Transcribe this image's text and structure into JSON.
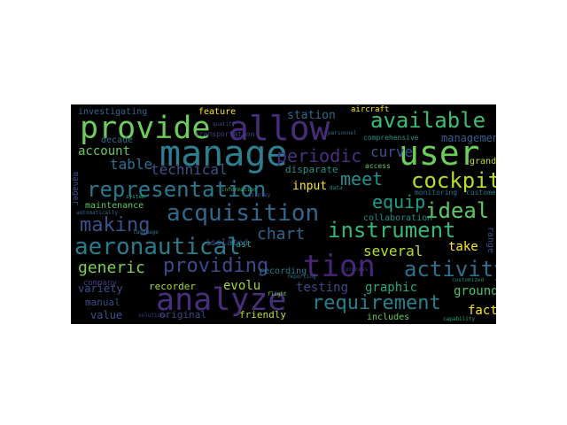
{
  "palette": {
    "background": "#000000",
    "page": "#ffffff"
  },
  "words": [
    {
      "t": "provide",
      "c": "#6ccd5a"
    },
    {
      "t": "allow",
      "c": "#472d7b"
    },
    {
      "t": "manage",
      "c": "#2b7f8e"
    },
    {
      "t": "user",
      "c": "#6ccd5a"
    },
    {
      "t": "available",
      "c": "#3fbc73"
    },
    {
      "t": "cockpit",
      "c": "#b4de2c"
    },
    {
      "t": "representation",
      "c": "#2a788e"
    },
    {
      "t": "acquisition",
      "c": "#31688e"
    },
    {
      "t": "tion",
      "c": "#482576"
    },
    {
      "t": "analyze",
      "c": "#472f7d"
    },
    {
      "t": "aeronautical",
      "c": "#287c8e"
    },
    {
      "t": "instrument",
      "c": "#35b779"
    },
    {
      "t": "providing",
      "c": "#3e4a89"
    },
    {
      "t": "making",
      "c": "#3b528b"
    },
    {
      "t": "ideal",
      "c": "#5ec962"
    },
    {
      "t": "requirement",
      "c": "#26818e"
    },
    {
      "t": "activity",
      "c": "#2d708e"
    },
    {
      "t": "periodic",
      "c": "#46327e"
    },
    {
      "t": "generic",
      "c": "#7ad151"
    },
    {
      "t": "meet",
      "c": "#21918c"
    },
    {
      "t": "equip",
      "c": "#1fa088"
    },
    {
      "t": "curve",
      "c": "#3a538b"
    },
    {
      "t": "chart",
      "c": "#33638d"
    },
    {
      "t": "testing",
      "c": "#3e4989"
    },
    {
      "t": "graphic",
      "c": "#22a884"
    },
    {
      "t": "several",
      "c": "#b8de29"
    },
    {
      "t": "table",
      "c": "#2c728e"
    },
    {
      "t": "technical",
      "c": "#3b528b"
    },
    {
      "t": "account",
      "c": "#65cb5e"
    },
    {
      "t": "management",
      "c": "#355f8d"
    },
    {
      "t": "station",
      "c": "#31688e"
    },
    {
      "t": "input",
      "c": "#fde725"
    },
    {
      "t": "take",
      "c": "#fde725"
    },
    {
      "t": "ground",
      "c": "#4ac16d"
    },
    {
      "t": "fact",
      "c": "#fde725"
    },
    {
      "t": "evolu",
      "c": "#a0da39"
    },
    {
      "t": "variety",
      "c": "#3b528b"
    },
    {
      "t": "value",
      "c": "#3a548c"
    },
    {
      "t": "feature",
      "c": "#fde725"
    },
    {
      "t": "investigating",
      "c": "#31688e"
    },
    {
      "t": "decade",
      "c": "#2d708e"
    },
    {
      "t": "grand",
      "c": "#bddf26"
    },
    {
      "t": "maintenance",
      "c": "#5ec962"
    },
    {
      "t": "disparate",
      "c": "#21918c"
    },
    {
      "t": "collaboration",
      "c": "#20928c"
    },
    {
      "t": "recording",
      "c": "#287d8e"
    },
    {
      "t": "isolated",
      "c": "#3b528b"
    },
    {
      "t": "fast",
      "c": "#21a685"
    },
    {
      "t": "recorder",
      "c": "#a5db36"
    },
    {
      "t": "company",
      "c": "#443a83"
    },
    {
      "t": "manual",
      "c": "#3d4e8a"
    },
    {
      "t": "original",
      "c": "#3f4788"
    },
    {
      "t": "friendly",
      "c": "#bddf26"
    },
    {
      "t": "includes",
      "c": "#6ccd5a"
    },
    {
      "t": "range",
      "c": "#3b528b"
    },
    {
      "t": "aircraft",
      "c": "#fde725"
    },
    {
      "t": "transportation",
      "c": "#414487"
    },
    {
      "t": "monitoring",
      "c": "#2a788e"
    },
    {
      "t": "access",
      "c": "#5ec962"
    },
    {
      "t": "manager",
      "c": "#3b528b"
    },
    {
      "t": "comprehensive",
      "c": "#21918c"
    },
    {
      "t": "customer",
      "c": "#2a788e"
    },
    {
      "t": "personnel",
      "c": "#31688e"
    },
    {
      "t": "information",
      "c": "#35b779"
    },
    {
      "t": "customized",
      "c": "#21918c"
    },
    {
      "t": "display",
      "c": "#3b528b"
    },
    {
      "t": "system",
      "c": "#22a884"
    },
    {
      "t": "process",
      "c": "#414487"
    },
    {
      "t": "language",
      "c": "#2a788e"
    },
    {
      "t": "flight",
      "c": "#7ad151"
    },
    {
      "t": "data",
      "c": "#21918c"
    },
    {
      "t": "quality",
      "c": "#3b528b"
    },
    {
      "t": "automatically",
      "c": "#31688e"
    },
    {
      "t": "solutions",
      "c": "#414487"
    },
    {
      "t": "capability",
      "c": "#22a884"
    },
    {
      "t": "reporting",
      "c": "#2a788e"
    }
  ]
}
